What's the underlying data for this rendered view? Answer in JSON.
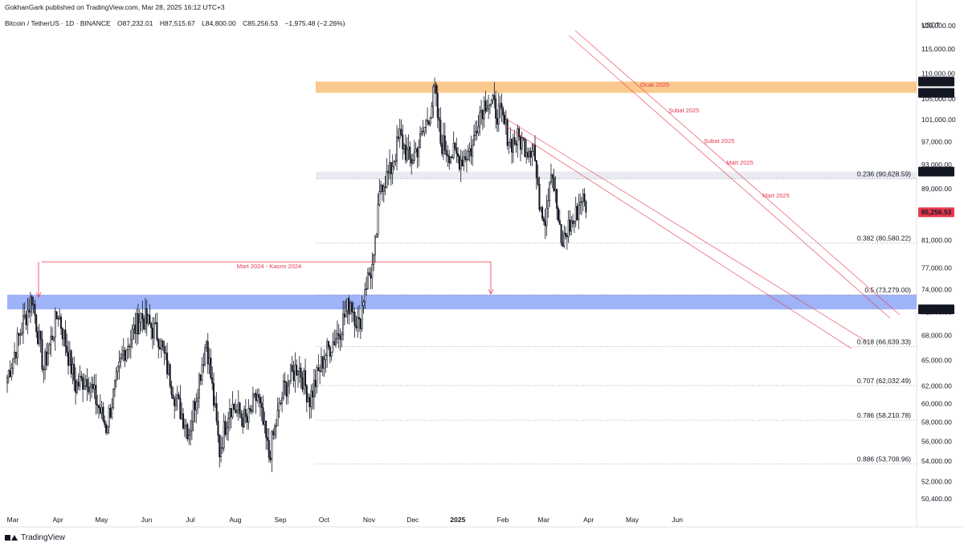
{
  "header": {
    "published": "GokhanGark published on TradingView.com, Mar 28, 2025 16:12 UTC+3",
    "symbol": "Bitcoin / TetherUS · 1D · BINANCE",
    "open": "O87,232.01",
    "high": "H87,515.67",
    "low": "L84,800.00",
    "close": "C85,256.53",
    "change": "−1,975.48 (−2.26%)",
    "currency": "USDT"
  },
  "footer": {
    "brand": "TradingView"
  },
  "colors": {
    "up": "#131722",
    "down": "#131722",
    "annotation": "#e8384f",
    "resistance_zone": "#f9c07a",
    "support_zone": "#8da6f7",
    "gray_zone": "#e0e3eb",
    "last_price": "#e8384f"
  },
  "chart_data": {
    "type": "candlestick",
    "x_labels": [
      "Mar",
      "Apr",
      "May",
      "Jun",
      "Jul",
      "Aug",
      "Sep",
      "Oct",
      "Nov",
      "Dec",
      "2025",
      "Feb",
      "Mar",
      "Apr",
      "May",
      "Jun"
    ],
    "y_ticks": [
      "120,000.00",
      "115,000.00",
      "110,000.00",
      "105,000.00",
      "101,000.00",
      "97,000.00",
      "93,000.00",
      "89,000.00",
      "85,000.00",
      "81,000.00",
      "77,000.00",
      "74,000.00",
      "71,000.00",
      "68,000.00",
      "65,000.00",
      "62,000.00",
      "60,000.00",
      "58,000.00",
      "56,000.00",
      "54,000.00",
      "52,000.00",
      "50,400.00"
    ],
    "y_range": [
      49000,
      124000
    ],
    "y_scale": "log",
    "price_badges": [
      {
        "value": 108353,
        "label": "108,353.00",
        "style": "dark"
      },
      {
        "value": 106133.74,
        "label": "106,133.74",
        "style": "dark"
      },
      {
        "value": 91850,
        "label": "91,850.00",
        "style": "dark"
      },
      {
        "value": 85256.53,
        "label": "85,256.53",
        "style": "last"
      },
      {
        "value": 71333.31,
        "label": "71,333.31",
        "style": "dark"
      }
    ],
    "zones": [
      {
        "name": "resistance",
        "from": 106133.74,
        "to": 108353,
        "color": "#f9c07a"
      },
      {
        "name": "gray",
        "from": 90628.59,
        "to": 91850,
        "color": "#e0e3eb"
      },
      {
        "name": "support",
        "from": 71333.31,
        "to": 73279,
        "color": "#8da6f7"
      }
    ],
    "fib_levels": [
      {
        "label": "0.236 (90,628.59)",
        "value": 90628.59
      },
      {
        "label": "0.382 (80,580.22)",
        "value": 80580.22
      },
      {
        "label": "0.5 (73,279.00)",
        "value": 73279.0
      },
      {
        "label": "0.618 (66,639.33)",
        "value": 66639.33
      },
      {
        "label": "0.707 (62,032.49)",
        "value": 62032.49
      },
      {
        "label": "0.786 (58,210.78)",
        "value": 58210.78
      },
      {
        "label": "0.886 (53,708.96)",
        "value": 53708.96
      }
    ],
    "annotations": [
      {
        "text": "Mart 2024 - Kasım 2024"
      },
      {
        "text": "Ocak 2025"
      },
      {
        "text": "Şubat 2025"
      },
      {
        "text": "Şubat 2025"
      },
      {
        "text": "Mart 2025"
      },
      {
        "text": "Mart 2025"
      }
    ],
    "anchors": [
      {
        "day": 0,
        "close": 63000
      },
      {
        "day": 10,
        "close": 69000
      },
      {
        "day": 17,
        "close": 73000
      },
      {
        "day": 25,
        "close": 64000
      },
      {
        "day": 35,
        "close": 71000
      },
      {
        "day": 47,
        "close": 62000
      },
      {
        "day": 55,
        "close": 63000
      },
      {
        "day": 68,
        "close": 57500
      },
      {
        "day": 80,
        "close": 66000
      },
      {
        "day": 92,
        "close": 70500
      },
      {
        "day": 104,
        "close": 68000
      },
      {
        "day": 116,
        "close": 60500
      },
      {
        "day": 125,
        "close": 57000
      },
      {
        "day": 137,
        "close": 67500
      },
      {
        "day": 146,
        "close": 55000
      },
      {
        "day": 153,
        "close": 60000
      },
      {
        "day": 165,
        "close": 58000
      },
      {
        "day": 172,
        "close": 61000
      },
      {
        "day": 180,
        "close": 54500
      },
      {
        "day": 190,
        "close": 61500
      },
      {
        "day": 200,
        "close": 64500
      },
      {
        "day": 208,
        "close": 60500
      },
      {
        "day": 218,
        "close": 65500
      },
      {
        "day": 228,
        "close": 68500
      },
      {
        "day": 236,
        "close": 72500
      },
      {
        "day": 242,
        "close": 69000
      },
      {
        "day": 246,
        "close": 74500
      },
      {
        "day": 252,
        "close": 77500
      },
      {
        "day": 257,
        "close": 90000
      },
      {
        "day": 263,
        "close": 91500
      },
      {
        "day": 270,
        "close": 98000
      },
      {
        "day": 277,
        "close": 93500
      },
      {
        "day": 284,
        "close": 97000
      },
      {
        "day": 291,
        "close": 103000
      },
      {
        "day": 294,
        "close": 106500
      },
      {
        "day": 298,
        "close": 97000
      },
      {
        "day": 305,
        "close": 95000
      },
      {
        "day": 312,
        "close": 94000
      },
      {
        "day": 320,
        "close": 96000
      },
      {
        "day": 324,
        "close": 102000
      },
      {
        "day": 330,
        "close": 105000
      },
      {
        "day": 334,
        "close": 103500
      },
      {
        "day": 340,
        "close": 101500
      },
      {
        "day": 346,
        "close": 97000
      },
      {
        "day": 352,
        "close": 97500
      },
      {
        "day": 358,
        "close": 96000
      },
      {
        "day": 362,
        "close": 96500
      },
      {
        "day": 365,
        "close": 88000
      },
      {
        "day": 370,
        "close": 84500
      },
      {
        "day": 374,
        "close": 93000
      },
      {
        "day": 378,
        "close": 86000
      },
      {
        "day": 381,
        "close": 80000
      },
      {
        "day": 386,
        "close": 83000
      },
      {
        "day": 390,
        "close": 84000
      },
      {
        "day": 395,
        "close": 88000
      },
      {
        "day": 398,
        "close": 85256
      }
    ]
  }
}
